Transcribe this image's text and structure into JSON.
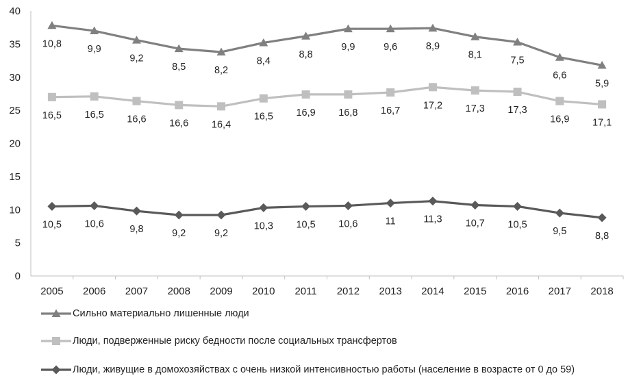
{
  "chart_data": {
    "type": "line",
    "x": [
      "2005",
      "2006",
      "2007",
      "2008",
      "2009",
      "2010",
      "2011",
      "2012",
      "2013",
      "2014",
      "2015",
      "2016",
      "2017",
      "2018"
    ],
    "ylim": [
      0,
      40
    ],
    "yticks": [
      "0",
      "5",
      "10",
      "15",
      "20",
      "25",
      "30",
      "35",
      "40"
    ],
    "grid": false,
    "legend_position": "bottom",
    "series": [
      {
        "name": "Сильно материально лишенные люди",
        "color": "#808080",
        "marker": "triangle",
        "values": [
          37.8,
          37.0,
          35.6,
          34.3,
          33.8,
          35.2,
          36.2,
          37.3,
          37.3,
          37.4,
          36.1,
          35.3,
          33.0,
          31.8
        ],
        "labels": [
          "10,8",
          "9,9",
          "9,2",
          "8,5",
          "8,2",
          "8,4",
          "8,8",
          "9,9",
          "9,6",
          "8,9",
          "8,1",
          "7,5",
          "6,6",
          "5,9"
        ]
      },
      {
        "name": "Люди, подверженные риску бедности после социальных трансфертов",
        "color": "#bfbfbf",
        "marker": "square",
        "values": [
          27.0,
          27.1,
          26.4,
          25.8,
          25.6,
          26.8,
          27.4,
          27.4,
          27.7,
          28.5,
          28.0,
          27.8,
          26.4,
          25.9
        ],
        "labels": [
          "16,5",
          "16,5",
          "16,6",
          "16,6",
          "16,4",
          "16,5",
          "16,9",
          "16,8",
          "16,7",
          "17,2",
          "17,3",
          "17,3",
          "16,9",
          "17,1"
        ]
      },
      {
        "name": "Люди, живущие в домохозяйствах с очень низкой интенсивностью работы (население в возрасте от 0 до 59)",
        "color": "#595959",
        "marker": "diamond",
        "values": [
          10.5,
          10.6,
          9.8,
          9.2,
          9.2,
          10.3,
          10.5,
          10.6,
          11.0,
          11.3,
          10.7,
          10.5,
          9.5,
          8.8
        ],
        "labels": [
          "10,5",
          "10,6",
          "9,8",
          "9,2",
          "9,2",
          "10,3",
          "10,5",
          "10,6",
          "11",
          "11,3",
          "10,7",
          "10,5",
          "9,5",
          "8,8"
        ]
      }
    ]
  }
}
